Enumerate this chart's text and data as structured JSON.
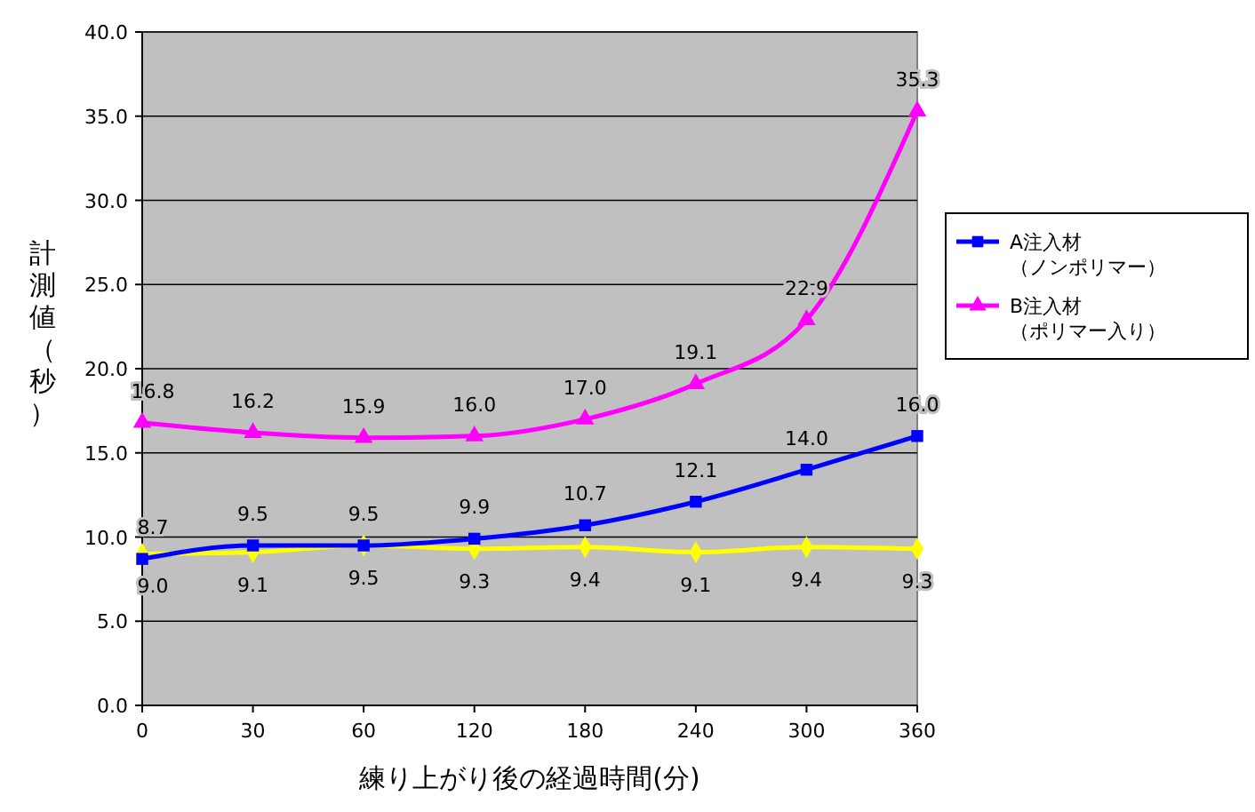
{
  "chart_data": {
    "type": "line",
    "xlabel": "練り上がり後の経過時間(分)",
    "ylabel": "計測値（秒）",
    "categories": [
      "0",
      "30",
      "60",
      "120",
      "180",
      "240",
      "300",
      "360"
    ],
    "ylim": [
      0,
      40
    ],
    "yticks": [
      {
        "value": 0,
        "label": "0.0"
      },
      {
        "value": 5,
        "label": "5.0"
      },
      {
        "value": 10,
        "label": "10.0"
      },
      {
        "value": 15,
        "label": "15.0"
      },
      {
        "value": 20,
        "label": "20.0"
      },
      {
        "value": 25,
        "label": "25.0"
      },
      {
        "value": 30,
        "label": "30.0"
      },
      {
        "value": 35,
        "label": "35.0"
      },
      {
        "value": 40,
        "label": "40.0"
      }
    ],
    "grid": "y",
    "legend": "right",
    "series": [
      {
        "color": "#ffff00",
        "marker": "diamond",
        "values": [
          9.0,
          9.1,
          9.5,
          9.3,
          9.4,
          9.1,
          9.4,
          9.3
        ],
        "value_labels": [
          "9.0",
          "9.1",
          "9.5",
          "9.3",
          "9.4",
          "9.1",
          "9.4",
          "9.3"
        ]
      },
      {
        "name": "A注入材（ノンポリマー）",
        "color": "#0000ff",
        "marker": "square",
        "values": [
          8.7,
          9.5,
          9.5,
          9.9,
          10.7,
          12.1,
          14.0,
          16.0
        ],
        "value_labels": [
          "8.7",
          "9.5",
          "9.5",
          "9.9",
          "10.7",
          "12.1",
          "14.0",
          "16.0"
        ]
      },
      {
        "name": "B注入材（ポリマー入り）",
        "color": "#ff00ff",
        "marker": "triangle",
        "values": [
          16.8,
          16.2,
          15.9,
          16.0,
          17.0,
          19.1,
          22.9,
          35.3
        ],
        "value_labels": [
          "16.8",
          "16.2",
          "15.9",
          "16.0",
          "17.0",
          "19.1",
          "22.9",
          "35.3"
        ]
      }
    ]
  }
}
